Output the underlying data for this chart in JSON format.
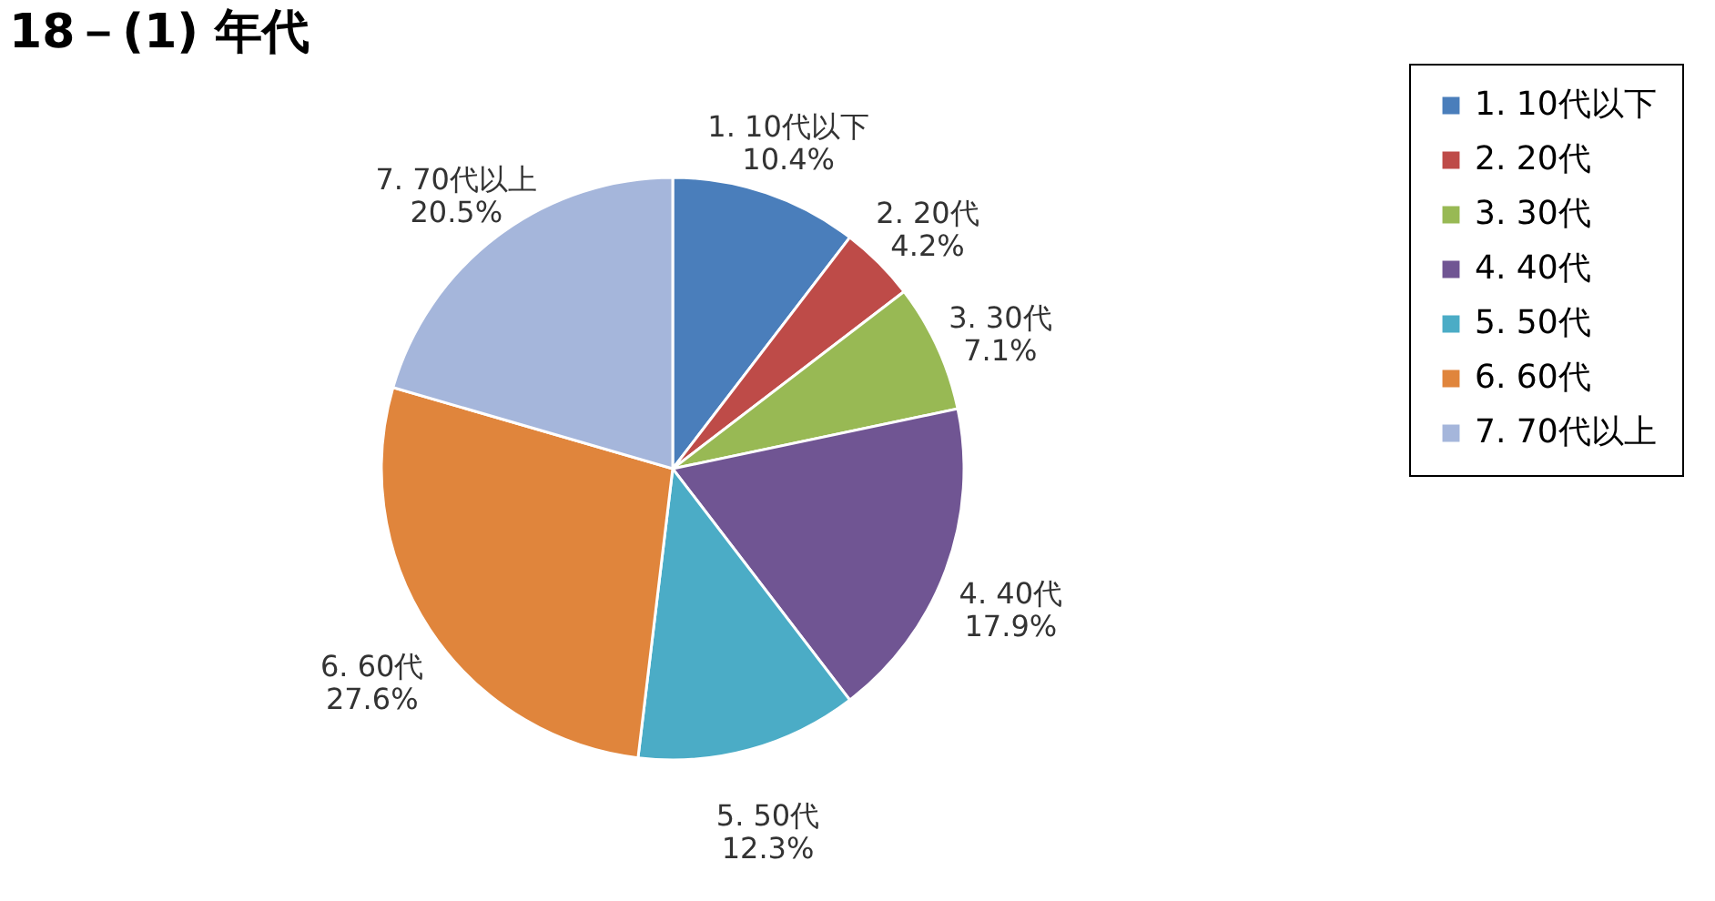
{
  "chart_data": {
    "type": "pie",
    "title": "18－(1) 年代",
    "categories": [
      "1. 10代以下",
      "2. 20代",
      "3. 30代",
      "4. 40代",
      "5. 50代",
      "6. 60代",
      "7. 70代以上"
    ],
    "values": [
      10.4,
      4.2,
      7.1,
      17.9,
      12.3,
      27.6,
      20.5
    ],
    "value_labels": [
      "10.4%",
      "4.2%",
      "7.1%",
      "17.9%",
      "12.3%",
      "27.6%",
      "20.5%"
    ],
    "colors": [
      "#4a7ebb",
      "#be4b48",
      "#98b954",
      "#705593",
      "#4bacc6",
      "#e0853c",
      "#a5b6db"
    ],
    "legend": "right"
  }
}
